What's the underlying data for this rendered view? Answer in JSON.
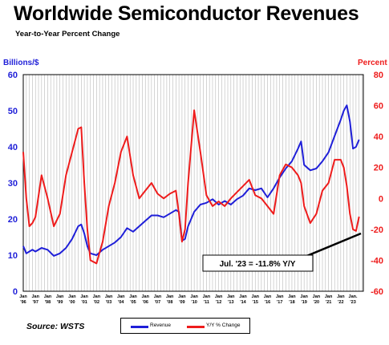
{
  "title": "Worldwide Semiconductor Revenues",
  "subtitle": "Year-to-Year Percent Change",
  "source": "Source: WSTS",
  "colors": {
    "revenue": "#1f1fd8",
    "yy": "#ee1c1c",
    "grid": "#b8b8b8"
  },
  "annotation": "Jul. '23 = -11.8% Y/Y",
  "chart_data": {
    "type": "line",
    "left_axis": {
      "label": "Billions/$",
      "ylim": [
        0,
        60
      ],
      "ticks": [
        0,
        10,
        20,
        30,
        40,
        50,
        60
      ],
      "color": "#1f1fd8"
    },
    "right_axis": {
      "label": "Percent",
      "ylim": [
        -60,
        80
      ],
      "ticks": [
        -60,
        -40,
        -20,
        0,
        20,
        40,
        60,
        80
      ],
      "color": "#ee1c1c"
    },
    "x_ticks": [
      "Jan '96",
      "Jan '97",
      "Jan '98",
      "Jan '99",
      "Jan '00",
      "Jan '01",
      "Jan '02",
      "Jan '03",
      "Jan '04",
      "Jan '05",
      "Jan '06",
      "Jan '07",
      "Jan '08",
      "Jan '09",
      "Jan '10",
      "Jan '11",
      "Jan '12",
      "Jan '13",
      "Jan '14",
      "Jan '15",
      "Jan '16",
      "Jan '17",
      "Jan '18",
      "Jan '19",
      "Jan '20",
      "Jan '21",
      "Jan '22",
      "Jan '23"
    ],
    "x_ticks_top": [
      "Jan",
      "Jan",
      "Jan",
      "Jan",
      "Jan",
      "Jan",
      "Jan",
      "Jan",
      "Jan",
      "Jan",
      "Jan",
      "Jan",
      "Jan",
      "Jan",
      "Jan",
      "Jan",
      "Jan",
      "Jan",
      "Jan",
      "Jan",
      "Jan",
      "Jan",
      "Jan",
      "Jan",
      "Jan",
      "Jan",
      "Jan",
      "Jan."
    ],
    "x_ticks_bottom": [
      "'96",
      "'97",
      "'98",
      "'99",
      "'00",
      "'01",
      "'02",
      "'03",
      "'04",
      "'05",
      "'06",
      "'07",
      "'08",
      "'09",
      "'10",
      "'11",
      "'12",
      "'13",
      "'14",
      "'15",
      "'16",
      "'17",
      "'18",
      "'19",
      "'20",
      "'21",
      "'22",
      "'23"
    ],
    "grid": "vertical",
    "series": [
      {
        "name": "Revenue",
        "axis": "left",
        "points": [
          [
            1996.0,
            12.5
          ],
          [
            1996.25,
            10.5
          ],
          [
            1996.5,
            11.0
          ],
          [
            1996.75,
            11.5
          ],
          [
            1997.0,
            11.0
          ],
          [
            1997.5,
            12.0
          ],
          [
            1998.0,
            11.5
          ],
          [
            1998.5,
            9.8
          ],
          [
            1999.0,
            10.5
          ],
          [
            1999.5,
            12.0
          ],
          [
            2000.0,
            14.5
          ],
          [
            2000.5,
            18.0
          ],
          [
            2000.75,
            18.5
          ],
          [
            2001.0,
            16.0
          ],
          [
            2001.25,
            12.5
          ],
          [
            2001.5,
            10.5
          ],
          [
            2002.0,
            10.0
          ],
          [
            2002.5,
            11.5
          ],
          [
            2003.0,
            12.5
          ],
          [
            2003.5,
            13.5
          ],
          [
            2004.0,
            15.0
          ],
          [
            2004.5,
            17.5
          ],
          [
            2005.0,
            16.5
          ],
          [
            2005.5,
            18.0
          ],
          [
            2006.0,
            19.5
          ],
          [
            2006.5,
            21.0
          ],
          [
            2007.0,
            21.0
          ],
          [
            2007.5,
            20.5
          ],
          [
            2008.0,
            21.5
          ],
          [
            2008.5,
            22.5
          ],
          [
            2008.75,
            22.0
          ],
          [
            2009.0,
            14.0
          ],
          [
            2009.25,
            14.5
          ],
          [
            2009.5,
            18.0
          ],
          [
            2010.0,
            22.0
          ],
          [
            2010.5,
            24.0
          ],
          [
            2011.0,
            24.5
          ],
          [
            2011.5,
            25.5
          ],
          [
            2012.0,
            24.0
          ],
          [
            2012.5,
            25.0
          ],
          [
            2013.0,
            24.0
          ],
          [
            2013.5,
            25.5
          ],
          [
            2014.0,
            26.5
          ],
          [
            2014.5,
            28.5
          ],
          [
            2015.0,
            28.0
          ],
          [
            2015.5,
            28.5
          ],
          [
            2016.0,
            26.0
          ],
          [
            2016.5,
            28.5
          ],
          [
            2017.0,
            31.5
          ],
          [
            2017.5,
            34.0
          ],
          [
            2018.0,
            36.0
          ],
          [
            2018.5,
            39.5
          ],
          [
            2018.75,
            41.5
          ],
          [
            2019.0,
            35.0
          ],
          [
            2019.5,
            33.5
          ],
          [
            2020.0,
            34.0
          ],
          [
            2020.5,
            36.0
          ],
          [
            2021.0,
            38.5
          ],
          [
            2021.5,
            43.0
          ],
          [
            2022.0,
            47.5
          ],
          [
            2022.25,
            50.0
          ],
          [
            2022.5,
            51.5
          ],
          [
            2022.75,
            47.0
          ],
          [
            2023.0,
            39.5
          ],
          [
            2023.25,
            40.0
          ],
          [
            2023.5,
            42.0
          ]
        ]
      },
      {
        "name": "Y/Y % Change",
        "axis": "right",
        "points": [
          [
            1996.0,
            30.0
          ],
          [
            1996.25,
            0.0
          ],
          [
            1996.5,
            -18.0
          ],
          [
            1996.75,
            -16.0
          ],
          [
            1997.0,
            -12.0
          ],
          [
            1997.5,
            15.0
          ],
          [
            1998.0,
            0.0
          ],
          [
            1998.5,
            -18.0
          ],
          [
            1999.0,
            -10.0
          ],
          [
            1999.5,
            15.0
          ],
          [
            2000.0,
            30.0
          ],
          [
            2000.5,
            45.0
          ],
          [
            2000.75,
            46.0
          ],
          [
            2001.0,
            10.0
          ],
          [
            2001.25,
            -20.0
          ],
          [
            2001.5,
            -40.0
          ],
          [
            2002.0,
            -42.0
          ],
          [
            2002.5,
            -28.0
          ],
          [
            2003.0,
            -5.0
          ],
          [
            2003.5,
            10.0
          ],
          [
            2004.0,
            30.0
          ],
          [
            2004.5,
            40.0
          ],
          [
            2005.0,
            15.0
          ],
          [
            2005.5,
            0.0
          ],
          [
            2006.0,
            5.0
          ],
          [
            2006.5,
            10.0
          ],
          [
            2007.0,
            3.0
          ],
          [
            2007.5,
            0.0
          ],
          [
            2008.0,
            3.0
          ],
          [
            2008.5,
            5.0
          ],
          [
            2008.75,
            -10.0
          ],
          [
            2009.0,
            -28.0
          ],
          [
            2009.25,
            -20.0
          ],
          [
            2009.5,
            10.0
          ],
          [
            2010.0,
            57.0
          ],
          [
            2010.5,
            30.0
          ],
          [
            2011.0,
            2.0
          ],
          [
            2011.5,
            -5.0
          ],
          [
            2012.0,
            -2.0
          ],
          [
            2012.5,
            -5.0
          ],
          [
            2013.0,
            0.0
          ],
          [
            2013.5,
            4.0
          ],
          [
            2014.0,
            8.0
          ],
          [
            2014.5,
            12.0
          ],
          [
            2015.0,
            2.0
          ],
          [
            2015.5,
            0.0
          ],
          [
            2016.0,
            -5.0
          ],
          [
            2016.5,
            -10.0
          ],
          [
            2017.0,
            15.0
          ],
          [
            2017.5,
            22.0
          ],
          [
            2018.0,
            20.0
          ],
          [
            2018.5,
            15.0
          ],
          [
            2018.75,
            10.0
          ],
          [
            2019.0,
            -5.0
          ],
          [
            2019.5,
            -16.0
          ],
          [
            2020.0,
            -10.0
          ],
          [
            2020.5,
            5.0
          ],
          [
            2021.0,
            10.0
          ],
          [
            2021.5,
            25.0
          ],
          [
            2022.0,
            25.0
          ],
          [
            2022.25,
            20.0
          ],
          [
            2022.5,
            8.0
          ],
          [
            2022.75,
            -10.0
          ],
          [
            2023.0,
            -20.0
          ],
          [
            2023.25,
            -21.0
          ],
          [
            2023.5,
            -11.8
          ]
        ]
      }
    ]
  },
  "legend": {
    "revenue": "Revenue",
    "yy": "Y/Y % Change"
  }
}
